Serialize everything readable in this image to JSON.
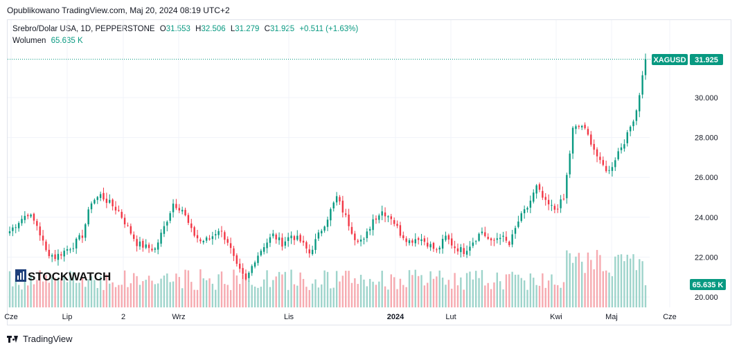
{
  "published": "Opublikowano TradingView.com, Maj 20, 2024 08:19 UTC+2",
  "legend": {
    "symbol": "Srebro/Dolar USA, 1D, PEPPERSTONE",
    "o_label": "O",
    "o_value": "31.553",
    "h_label": "H",
    "h_value": "32.506",
    "l_label": "L",
    "l_value": "31.279",
    "c_label": "C",
    "c_value": "31.925",
    "change": "+0.511 (+1.63%)",
    "volume_label": "Wolumen",
    "volume_value": "65.635 K"
  },
  "watermark": "STOCKWATCH",
  "footer": "TradingView",
  "colors": {
    "up": "#089981",
    "down": "#f23645",
    "vol_up": "#9ed4cb",
    "vol_down": "#f6aab0",
    "grid": "#f0f3fa"
  },
  "chart_data": {
    "type": "candlestick",
    "symbol_badge": "XAGUSD",
    "price_badge": "31.925",
    "volume_badge": "65.635 K",
    "y_ticks": [
      "30.000",
      "28.000",
      "26.000",
      "24.000",
      "22.000",
      "20.000"
    ],
    "x_ticks": [
      "Cze",
      "Lip",
      "2",
      "Wrz",
      "Lis",
      "2024",
      "Lut",
      "Kwi",
      "Maj",
      "Cze"
    ],
    "ylim": [
      19.5,
      32.5
    ],
    "last_close": 31.925,
    "anchors": [
      [
        0,
        23.3
      ],
      [
        3,
        23.8
      ],
      [
        6,
        24.2
      ],
      [
        9,
        23.6
      ],
      [
        12,
        22.3
      ],
      [
        15,
        22.0
      ],
      [
        18,
        22.3
      ],
      [
        21,
        22.6
      ],
      [
        24,
        23.1
      ],
      [
        27,
        24.8
      ],
      [
        30,
        25.1
      ],
      [
        33,
        24.7
      ],
      [
        36,
        24.3
      ],
      [
        39,
        23.5
      ],
      [
        42,
        22.7
      ],
      [
        45,
        22.5
      ],
      [
        48,
        22.4
      ],
      [
        51,
        23.5
      ],
      [
        54,
        24.7
      ],
      [
        57,
        24.4
      ],
      [
        60,
        23.3
      ],
      [
        63,
        22.8
      ],
      [
        66,
        22.9
      ],
      [
        69,
        23.4
      ],
      [
        72,
        22.8
      ],
      [
        75,
        21.5
      ],
      [
        78,
        20.8
      ],
      [
        81,
        21.9
      ],
      [
        84,
        22.6
      ],
      [
        87,
        23.1
      ],
      [
        90,
        22.7
      ],
      [
        93,
        23.1
      ],
      [
        96,
        22.8
      ],
      [
        99,
        22.2
      ],
      [
        102,
        23.1
      ],
      [
        105,
        24.0
      ],
      [
        108,
        25.0
      ],
      [
        111,
        24.0
      ],
      [
        114,
        23.0
      ],
      [
        117,
        22.8
      ],
      [
        120,
        23.9
      ],
      [
        123,
        24.3
      ],
      [
        126,
        24.0
      ],
      [
        129,
        23.2
      ],
      [
        132,
        22.8
      ],
      [
        135,
        23.0
      ],
      [
        138,
        22.7
      ],
      [
        141,
        22.3
      ],
      [
        144,
        23.0
      ],
      [
        147,
        22.5
      ],
      [
        150,
        22.3
      ],
      [
        153,
        22.8
      ],
      [
        156,
        23.3
      ],
      [
        159,
        22.7
      ],
      [
        162,
        23.1
      ],
      [
        165,
        22.6
      ],
      [
        168,
        23.8
      ],
      [
        171,
        24.5
      ],
      [
        174,
        25.5
      ],
      [
        177,
        24.7
      ],
      [
        180,
        24.4
      ],
      [
        183,
        24.9
      ],
      [
        186,
        28.4
      ],
      [
        189,
        28.6
      ],
      [
        192,
        27.8
      ],
      [
        195,
        26.7
      ],
      [
        198,
        26.3
      ],
      [
        201,
        27.3
      ],
      [
        204,
        28.1
      ],
      [
        207,
        29.4
      ],
      [
        210,
        31.9
      ]
    ]
  }
}
